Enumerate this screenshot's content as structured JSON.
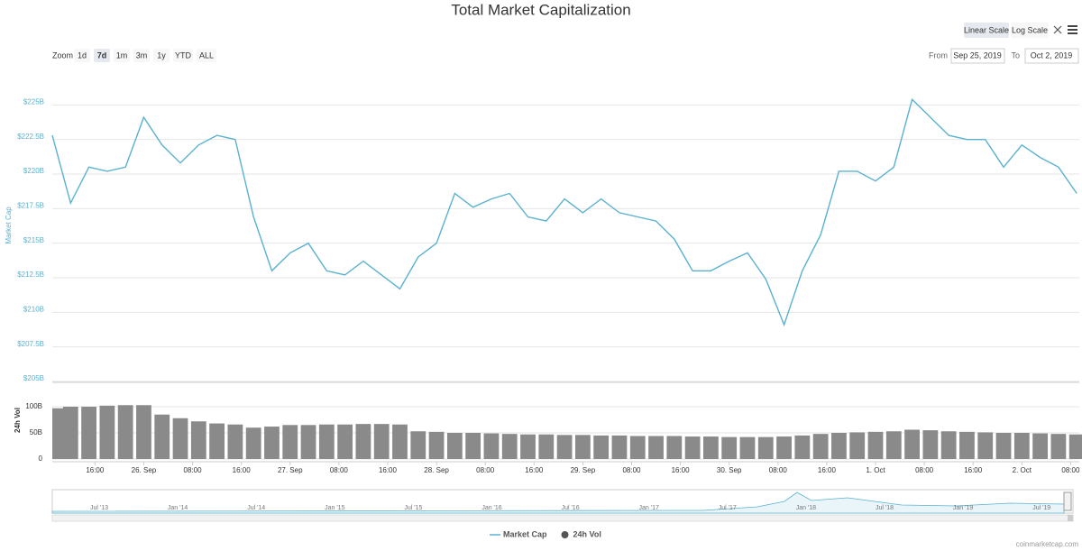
{
  "chart_data": {
    "type": "line",
    "title": "Total Market Capitalization",
    "ylabel": "Market Cap",
    "y2label": "24h Vol",
    "legend": "bottom",
    "log_scale": false,
    "grid": true,
    "x": [
      "2019-09-25T09:00",
      "2019-09-25T12:00",
      "2019-09-25T15:00",
      "2019-09-25T18:00",
      "2019-09-25T21:00",
      "2019-09-26T00:00",
      "2019-09-26T03:00",
      "2019-09-26T06:00",
      "2019-09-26T09:00",
      "2019-09-26T12:00",
      "2019-09-26T15:00",
      "2019-09-26T18:00",
      "2019-09-26T21:00",
      "2019-09-27T00:00",
      "2019-09-27T03:00",
      "2019-09-27T06:00",
      "2019-09-27T09:00",
      "2019-09-27T12:00",
      "2019-09-27T15:00",
      "2019-09-27T18:00",
      "2019-09-27T21:00",
      "2019-09-28T00:00",
      "2019-09-28T03:00",
      "2019-09-28T06:00",
      "2019-09-28T09:00",
      "2019-09-28T12:00",
      "2019-09-28T15:00",
      "2019-09-28T18:00",
      "2019-09-28T21:00",
      "2019-09-29T00:00",
      "2019-09-29T03:00",
      "2019-09-29T06:00",
      "2019-09-29T09:00",
      "2019-09-29T12:00",
      "2019-09-29T15:00",
      "2019-09-29T18:00",
      "2019-09-29T21:00",
      "2019-09-30T00:00",
      "2019-09-30T03:00",
      "2019-09-30T06:00",
      "2019-09-30T09:00",
      "2019-09-30T12:00",
      "2019-09-30T15:00",
      "2019-09-30T18:00",
      "2019-09-30T21:00",
      "2019-10-01T00:00",
      "2019-10-01T03:00",
      "2019-10-01T06:00",
      "2019-10-01T09:00",
      "2019-10-01T12:00",
      "2019-10-01T15:00",
      "2019-10-01T18:00",
      "2019-10-01T21:00",
      "2019-10-02T00:00",
      "2019-10-02T03:00",
      "2019-10-02T06:00",
      "2019-10-02T09:00"
    ],
    "xlim": [
      "2019-09-25T09:00",
      "2019-10-02T09:25"
    ],
    "xticks": [
      {
        "value": "2019-09-25T16:00",
        "label": "16:00"
      },
      {
        "value": "2019-09-26T00:00",
        "label": "26. Sep"
      },
      {
        "value": "2019-09-26T08:00",
        "label": "08:00"
      },
      {
        "value": "2019-09-26T16:00",
        "label": "16:00"
      },
      {
        "value": "2019-09-27T00:00",
        "label": "27. Sep"
      },
      {
        "value": "2019-09-27T08:00",
        "label": "08:00"
      },
      {
        "value": "2019-09-27T16:00",
        "label": "16:00"
      },
      {
        "value": "2019-09-28T00:00",
        "label": "28. Sep"
      },
      {
        "value": "2019-09-28T08:00",
        "label": "08:00"
      },
      {
        "value": "2019-09-28T16:00",
        "label": "16:00"
      },
      {
        "value": "2019-09-29T00:00",
        "label": "29. Sep"
      },
      {
        "value": "2019-09-29T08:00",
        "label": "08:00"
      },
      {
        "value": "2019-09-29T16:00",
        "label": "16:00"
      },
      {
        "value": "2019-09-30T00:00",
        "label": "30. Sep"
      },
      {
        "value": "2019-09-30T08:00",
        "label": "08:00"
      },
      {
        "value": "2019-09-30T16:00",
        "label": "16:00"
      },
      {
        "value": "2019-10-01T00:00",
        "label": "1. Oct"
      },
      {
        "value": "2019-10-01T08:00",
        "label": "08:00"
      },
      {
        "value": "2019-10-01T16:00",
        "label": "16:00"
      },
      {
        "value": "2019-10-02T00:00",
        "label": "2. Oct"
      },
      {
        "value": "2019-10-02T08:00",
        "label": "08:00"
      }
    ],
    "ylim": [
      205,
      227.5
    ],
    "yticks": [
      {
        "value": 205,
        "label": "$205B"
      },
      {
        "value": 207.5,
        "label": "$207.5B"
      },
      {
        "value": 210,
        "label": "$210B"
      },
      {
        "value": 212.5,
        "label": "$212.5B"
      },
      {
        "value": 215,
        "label": "$215B"
      },
      {
        "value": 217.5,
        "label": "$217.5B"
      },
      {
        "value": 220,
        "label": "$220B"
      },
      {
        "value": 222.5,
        "label": "$222.5B"
      },
      {
        "value": 225,
        "label": "$225B"
      }
    ],
    "y2lim": [
      0,
      150
    ],
    "y2ticks": [
      0,
      {
        "value": 50,
        "label": "50B"
      },
      {
        "value": 100,
        "label": "100B"
      }
    ],
    "series": [
      {
        "name": "Market Cap",
        "type": "line",
        "color": "#5ab1d0",
        "values": [
          222.8,
          217.9,
          220.5,
          220.2,
          220.5,
          224.1,
          222.1,
          220.8,
          222.1,
          222.8,
          222.5,
          216.9,
          213.0,
          214.3,
          215.0,
          213.0,
          212.7,
          213.7,
          212.7,
          211.7,
          214.0,
          215.0,
          218.6,
          217.6,
          218.2,
          218.6,
          216.9,
          216.6,
          218.2,
          217.2,
          218.2,
          217.2,
          216.9,
          216.6,
          215.3,
          213.0,
          213.0,
          213.7,
          214.3,
          212.4,
          209.1,
          213.0,
          215.6,
          220.2,
          220.2,
          219.5,
          220.5,
          225.4,
          224.1,
          222.8,
          222.5,
          222.5,
          220.5,
          222.1,
          221.2,
          220.5,
          218.6
        ]
      },
      {
        "name": "24h Vol",
        "type": "bar",
        "axis": "y2",
        "color": "#8a8a8a",
        "values": [
          97,
          100,
          100,
          102,
          103,
          103,
          85,
          78,
          72,
          68,
          66,
          60,
          62,
          65,
          65,
          66,
          66,
          67,
          67,
          66,
          53,
          52,
          50,
          50,
          49,
          48,
          47,
          47,
          46,
          46,
          45,
          45,
          44,
          44,
          44,
          43,
          43,
          42,
          42,
          42,
          43,
          45,
          48,
          50,
          51,
          52,
          53,
          56,
          55,
          53,
          52,
          51,
          50,
          50,
          49,
          48,
          47
        ]
      }
    ]
  },
  "controls": {
    "zoom_label": "Zoom",
    "zoom": [
      "1d",
      "7d",
      "1m",
      "3m",
      "1y",
      "YTD",
      "ALL"
    ],
    "scales": [
      "Linear Scale",
      "Log Scale"
    ],
    "from_label": "From",
    "from": "Sep 25, 2019",
    "to_label": "To",
    "to": "Oct 2, 2019",
    "navigator": [
      "Jul '13",
      "Jan '14",
      "Jul '14",
      "Jan '15",
      "Jul '15",
      "Jan '16",
      "Jul '16",
      "Jan '17",
      "Jul '17",
      "Jan '18",
      "Jul '18",
      "Jan '19",
      "Jul '19"
    ],
    "credit": "coinmarketcap.com"
  }
}
